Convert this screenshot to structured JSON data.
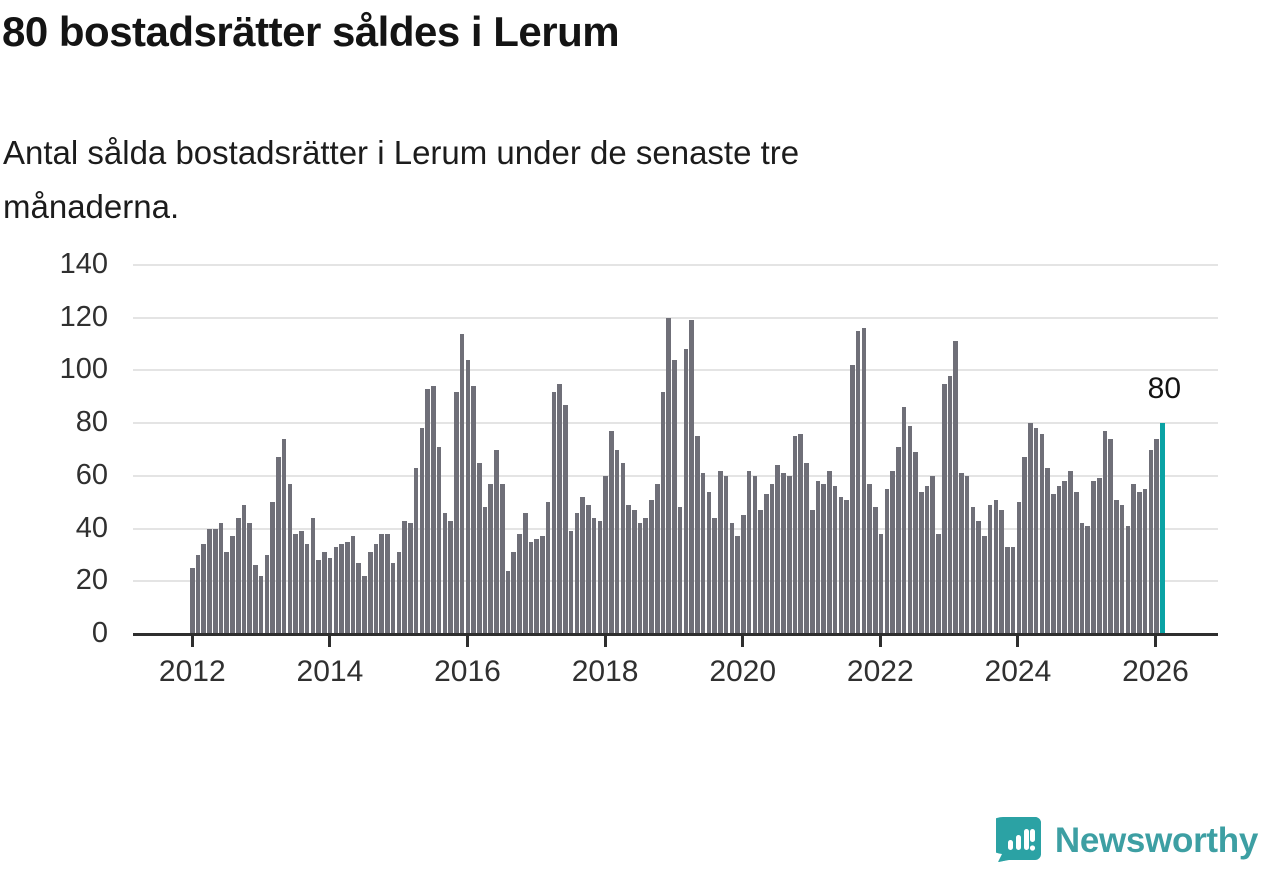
{
  "header": {
    "title": "80 bostadsrätter såldes i Lerum",
    "subtitle_line1": "Antal sålda bostadsrätter i Lerum under de senaste tre",
    "subtitle_line2": "månaderna."
  },
  "chart_data": {
    "type": "bar",
    "title": "80 bostadsrätter såldes i Lerum",
    "subtitle": "Antal sålda bostadsrätter i Lerum under de senaste tre månaderna.",
    "x_unit": "month",
    "x_start": "2012-01",
    "x_end": "2026-02",
    "xlabel": "",
    "ylabel": "",
    "ylim": [
      0,
      140
    ],
    "yticks": [
      0,
      20,
      40,
      60,
      80,
      100,
      120,
      140
    ],
    "xticks": [
      2012,
      2014,
      2016,
      2018,
      2020,
      2022,
      2024,
      2026
    ],
    "grid": true,
    "legend": "none",
    "values": [
      25,
      30,
      34,
      40,
      40,
      42,
      31,
      37,
      44,
      49,
      42,
      26,
      22,
      30,
      50,
      67,
      74,
      57,
      38,
      39,
      34,
      44,
      28,
      31,
      29,
      33,
      34,
      35,
      37,
      27,
      22,
      31,
      34,
      38,
      38,
      27,
      31,
      43,
      42,
      63,
      78,
      93,
      94,
      71,
      46,
      43,
      92,
      114,
      104,
      94,
      65,
      48,
      57,
      70,
      57,
      24,
      31,
      38,
      46,
      35,
      36,
      37,
      50,
      92,
      95,
      87,
      39,
      46,
      52,
      49,
      44,
      43,
      60,
      77,
      70,
      65,
      49,
      47,
      42,
      44,
      51,
      57,
      92,
      120,
      104,
      48,
      108,
      119,
      75,
      61,
      54,
      44,
      62,
      60,
      42,
      37,
      45,
      62,
      60,
      47,
      53,
      57,
      64,
      61,
      60,
      75,
      76,
      65,
      47,
      58,
      57,
      62,
      56,
      52,
      51,
      102,
      115,
      116,
      57,
      48,
      38,
      55,
      62,
      71,
      86,
      79,
      69,
      54,
      56,
      60,
      38,
      95,
      98,
      111,
      61,
      60,
      48,
      43,
      37,
      49,
      51,
      47,
      33,
      33,
      50,
      67,
      80,
      78,
      76,
      63,
      53,
      56,
      58,
      62,
      54,
      42,
      41,
      58,
      59,
      77,
      74,
      51,
      49,
      41,
      57,
      54,
      55,
      70,
      74,
      80
    ],
    "highlight": {
      "index": 169,
      "value": 80,
      "label": "80"
    }
  },
  "colors": {
    "bar": "#6f6f78",
    "highlight": "#0aa2a4",
    "axis": "#2e2e2e",
    "grid": "#e4e4e4",
    "text": "#303030",
    "title": "#141414",
    "logo": "#3d9fa3"
  },
  "footer": {
    "logo_text": "Newsworthy"
  }
}
